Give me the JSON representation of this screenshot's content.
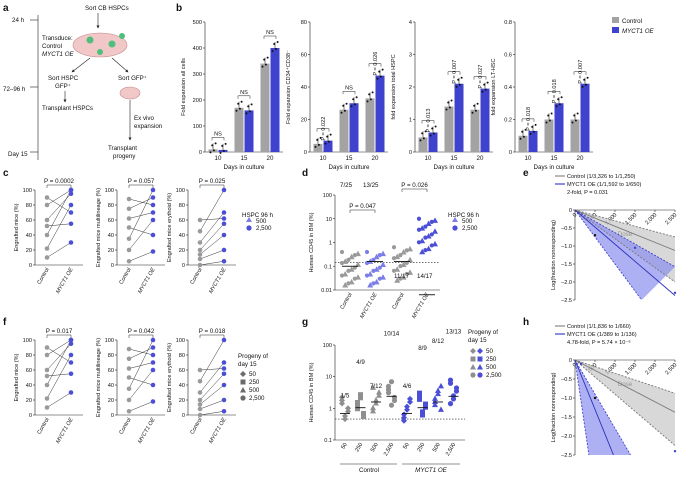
{
  "colors": {
    "control": "#9a9a9a",
    "oe": "#3e42cc",
    "ci_grey": "#c8c8c8",
    "ci_blue": "#8c8ef0"
  },
  "panel_labels": {
    "a": "a",
    "b": "b",
    "c": "c",
    "d": "d",
    "e": "e",
    "f": "f",
    "g": "g",
    "h": "h"
  },
  "panel_a": {
    "time_24h": "24 h",
    "time_72_96": "72–96 h",
    "time_day15": "Day 15",
    "sort_cb": "Sort CB HSPCs",
    "transduce": "Transduce:",
    "control": "Control",
    "oe": "MYCT1 OE",
    "sort_hspc": "Sort HSPC",
    "gfp": "GFP⁺",
    "sort_gfp": "Sort GFP⁺",
    "transplant_hspc": "Transplant HSPCs",
    "ex_vivo": "Ex vivo",
    "expansion": "expansion",
    "transplant": "Transplant",
    "progeny": "progeny"
  },
  "panel_b": {
    "xlabel": "Days in culture",
    "legend": {
      "control": "Control",
      "oe": "MYCT1 OE"
    },
    "charts": [
      {
        "ylabel": "Fold expansion all cells",
        "yticks": [
          "0",
          "100",
          "200",
          "300",
          "400",
          "500"
        ],
        "ymax": 500,
        "categories": [
          "10",
          "15",
          "20"
        ],
        "control": [
          10,
          170,
          340
        ],
        "oe": [
          8,
          160,
          400
        ],
        "sig": [
          "NS",
          "NS",
          "NS"
        ]
      },
      {
        "ylabel": "Fold expansion CD34⁺CD38⁻",
        "yticks": [
          "0",
          "20",
          "40",
          "60",
          "80"
        ],
        "ymax": 80,
        "categories": [
          "10",
          "15",
          "20"
        ],
        "control": [
          5,
          26,
          33
        ],
        "oe": [
          7,
          30,
          47
        ],
        "sig": [
          "P = 0.022",
          "NS",
          "P = 0.026"
        ]
      },
      {
        "ylabel": "fold expansion total HSPC",
        "yticks": [
          "0",
          "1",
          "2",
          "3",
          "4"
        ],
        "ymax": 4,
        "categories": [
          "10",
          "15",
          "20"
        ],
        "control": [
          0.45,
          1.4,
          1.3
        ],
        "oe": [
          0.6,
          2.1,
          1.95
        ],
        "sig": [
          "P = 0.013",
          "P = 0.007",
          "P = 0.027"
        ]
      },
      {
        "ylabel": "fold expansion LT-HSC",
        "yticks": [
          "0",
          "0.2",
          "0.4",
          "0.6",
          "0.8"
        ],
        "ymax": 0.8,
        "categories": [
          "10",
          "15",
          "20"
        ],
        "control": [
          0.1,
          0.2,
          0.2
        ],
        "oe": [
          0.13,
          0.3,
          0.42
        ],
        "sig": [
          "P = 0.018",
          "P = 0.018",
          "P = 0.007"
        ]
      }
    ]
  },
  "panel_c": {
    "xcats": [
      "Control",
      "MYCT1 OE"
    ],
    "yticks": [
      "0",
      "20",
      "40",
      "60",
      "80",
      "100"
    ],
    "charts": [
      {
        "ylabel": "Engrafted mice (%)",
        "p": "P = 0.0002"
      },
      {
        "ylabel": "Engrafted mice multilineage (%)",
        "p": "P = 0.057"
      },
      {
        "ylabel": "Engrafted mice erythoid (%)",
        "p": "P = 0.025"
      }
    ],
    "legend_title": "HSPC 96 h",
    "legend": [
      "500",
      "2,500"
    ]
  },
  "panel_d": {
    "ylabel": "Human CD45 in BM (%)",
    "yticks": [
      "100",
      "10",
      "1",
      "0.1",
      "0.01"
    ],
    "xcats": [
      "Control",
      "MYCT1 OE",
      "Control",
      "MYCT1 OE"
    ],
    "fractions": [
      "7/25",
      "13/25",
      "11/17",
      "14/17"
    ],
    "p": [
      "P = 0.047",
      "P = 0.026"
    ],
    "legend_title": "HSPC 96 h",
    "legend": [
      "500",
      "2,500"
    ]
  },
  "panel_e": {
    "ylabel": "Log(fraction nonresponding)",
    "xlabel": "Dose",
    "yticks": [
      "0",
      "–0.5",
      "–1.0",
      "–1.5",
      "–2.0",
      "–2.5"
    ],
    "xticks": [
      "0",
      "500",
      "1,000",
      "1,500",
      "2,000",
      "2,500"
    ],
    "legend": [
      "Control (1/3,326 to 1/1,250)",
      "MYCT1 OE (1/1,592 to 1/650)",
      "2-fold, P = 0.031"
    ]
  },
  "panel_f": {
    "xcats": [
      "Control",
      "MYCT1 OE"
    ],
    "yticks": [
      "0",
      "20",
      "40",
      "60",
      "80",
      "100"
    ],
    "charts": [
      {
        "ylabel": "Engrafted mice (%)",
        "p": "P = 0.017"
      },
      {
        "ylabel": "Engrafted mice multilineage (%)",
        "p": "P = 0.042"
      },
      {
        "ylabel": "Engrafted mice erythoid (%)",
        "p": "P = 0.018"
      }
    ],
    "legend_title": "Progeny of day 15",
    "legend": [
      "50",
      "250",
      "500",
      "2,500"
    ]
  },
  "panel_g": {
    "ylabel": "Human CD45 in BM (%)",
    "yticks": [
      "100",
      "10",
      "1",
      "0.1"
    ],
    "xticks": [
      "50",
      "250",
      "500",
      "2,500",
      "50",
      "250",
      "500",
      "2,500"
    ],
    "groups": [
      "Control",
      "MYCT1 OE"
    ],
    "fractions": [
      "1/5",
      "4/9",
      "7/12",
      "10/14",
      "4/6",
      "8/9",
      "8/12",
      "13/13"
    ],
    "legend_title": "Progeny of day 15",
    "legend": [
      "50",
      "250",
      "500",
      "2,500"
    ]
  },
  "panel_h": {
    "ylabel": "Log(fraction nonresponding)",
    "xlabel": "Dose",
    "yticks": [
      "0",
      "–0.5",
      "–1.0",
      "–1.5",
      "–2.0",
      "–2.5"
    ],
    "xticks": [
      "0",
      "500",
      "1,000",
      "1,500",
      "2,000",
      "2,500"
    ],
    "legend": [
      "Control (1/1,836 to 1/660)",
      "MYCT1 OE (1/389 to 1/136)",
      "4.78-fold, P = 5.74 × 10⁻⁶"
    ]
  }
}
